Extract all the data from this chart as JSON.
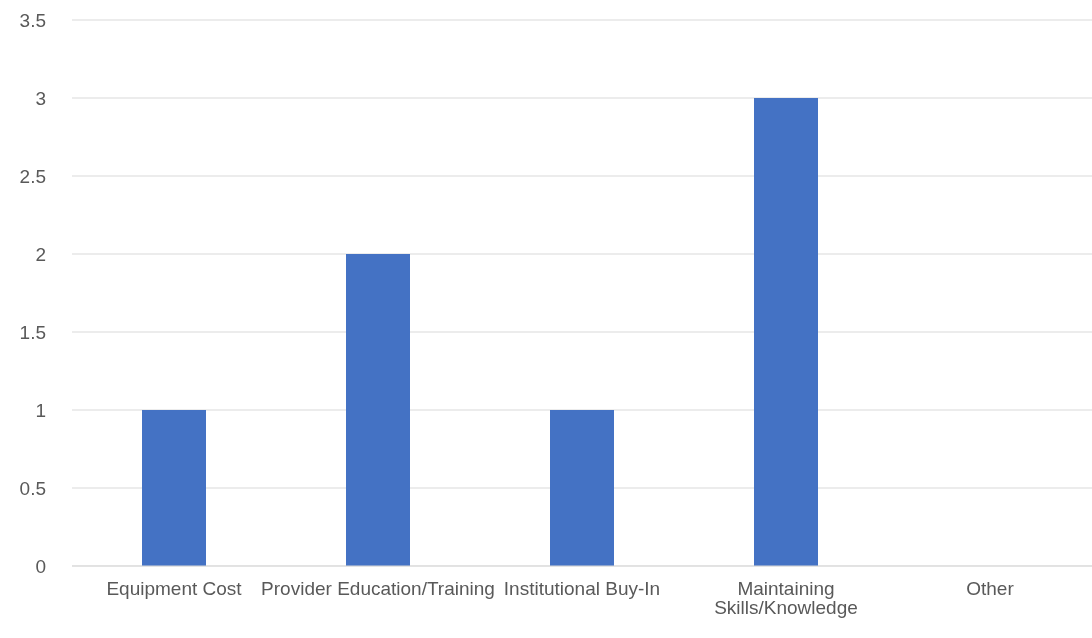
{
  "chart_data": {
    "type": "bar",
    "categories": [
      "Equipment Cost",
      "Provider Education/Training",
      "Institutional Buy-In",
      "Maintaining Skills/Knowledge",
      "Other"
    ],
    "values": [
      1,
      2,
      1,
      3,
      0
    ],
    "color": "#4472c4",
    "ylim": [
      0,
      3.5
    ],
    "yticks": [
      0,
      0.5,
      1,
      1.5,
      2,
      2.5,
      3,
      3.5
    ],
    "grid": "y"
  }
}
